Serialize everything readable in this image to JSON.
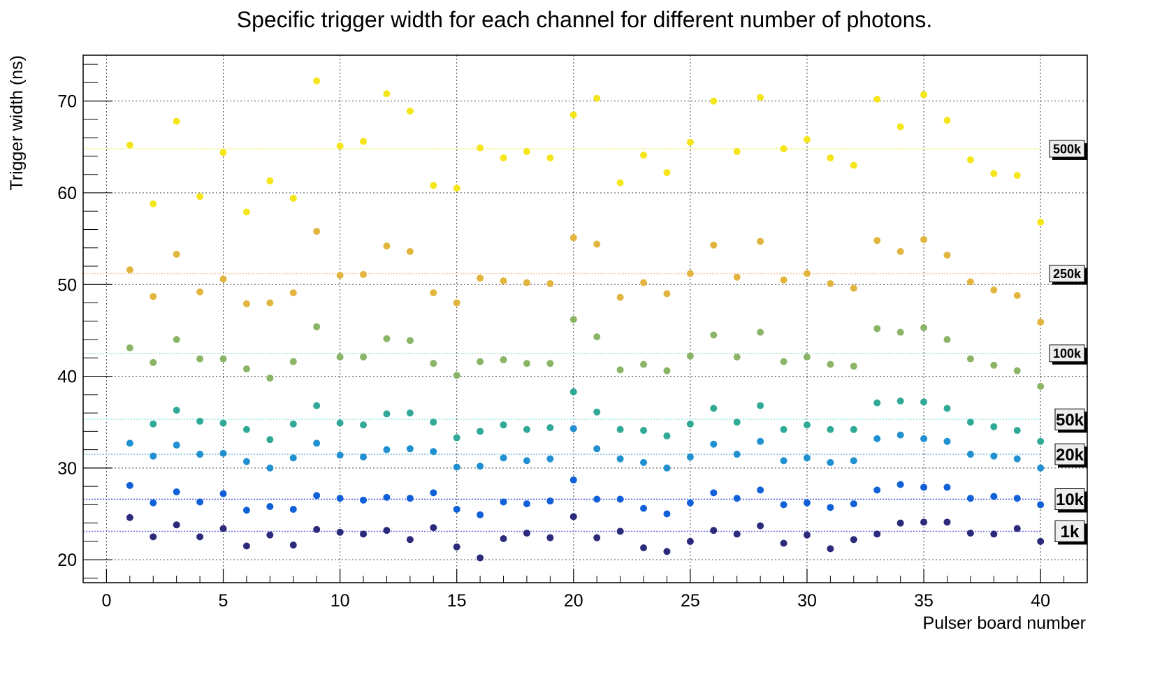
{
  "chart_data": {
    "type": "scatter",
    "title": "Specific trigger width for each channel for different number of photons.",
    "xlabel": "Pulser board number",
    "ylabel": "Trigger width (ns)",
    "xlim": [
      -1,
      42
    ],
    "ylim": [
      17.5,
      75
    ],
    "x_ticks": [
      0,
      5,
      10,
      15,
      20,
      25,
      30,
      35,
      40
    ],
    "y_ticks": [
      20,
      30,
      40,
      50,
      60,
      70
    ],
    "grid": true,
    "x": [
      1,
      2,
      3,
      4,
      5,
      6,
      7,
      8,
      9,
      10,
      11,
      12,
      13,
      14,
      15,
      16,
      17,
      18,
      19,
      20,
      21,
      22,
      23,
      24,
      25,
      26,
      27,
      28,
      29,
      30,
      31,
      32,
      33,
      34,
      35,
      36,
      37,
      38,
      39,
      40
    ],
    "series": [
      {
        "name": "500k",
        "color": "#f5e61b",
        "mean": 64.8,
        "values": [
          65.2,
          58.8,
          67.8,
          59.6,
          64.4,
          57.9,
          61.3,
          59.4,
          72.2,
          65.1,
          65.6,
          70.8,
          68.9,
          60.8,
          60.5,
          64.9,
          63.8,
          64.5,
          63.8,
          68.5,
          70.3,
          61.1,
          64.1,
          62.2,
          65.5,
          70.0,
          64.5,
          70.4,
          64.8,
          65.8,
          63.8,
          63.0,
          70.2,
          67.2,
          70.7,
          67.9,
          63.6,
          62.1,
          61.9,
          56.8
        ]
      },
      {
        "name": "250k",
        "color": "#e2b53e",
        "mean": 51.2,
        "values": [
          51.6,
          48.7,
          53.3,
          49.2,
          50.6,
          47.9,
          48.0,
          49.1,
          55.8,
          51.0,
          51.1,
          54.2,
          53.6,
          49.1,
          48.0,
          50.7,
          50.4,
          50.2,
          50.1,
          55.1,
          54.4,
          48.6,
          50.2,
          49.0,
          51.2,
          54.3,
          50.8,
          54.7,
          50.5,
          51.2,
          50.1,
          49.6,
          54.8,
          53.6,
          54.9,
          53.2,
          50.3,
          49.4,
          48.8,
          45.9
        ]
      },
      {
        "name": "100k",
        "color": "#8ab466",
        "mean": 42.5,
        "values": [
          43.1,
          41.5,
          44.0,
          41.9,
          41.9,
          40.8,
          39.8,
          41.6,
          45.4,
          42.1,
          42.1,
          44.1,
          43.9,
          41.4,
          40.1,
          41.6,
          41.8,
          41.4,
          41.4,
          46.2,
          44.3,
          40.7,
          41.3,
          40.6,
          42.2,
          44.5,
          42.1,
          44.8,
          41.6,
          42.1,
          41.3,
          41.1,
          45.2,
          44.8,
          45.3,
          44.0,
          41.9,
          41.2,
          40.6,
          38.9
        ]
      },
      {
        "name": "50k",
        "color": "#30aa96",
        "mean": 35.3,
        "values": [
          null,
          34.8,
          36.3,
          35.1,
          34.9,
          34.2,
          33.1,
          34.8,
          36.8,
          34.9,
          34.7,
          35.9,
          36.0,
          35.0,
          33.3,
          34.0,
          34.7,
          34.2,
          34.4,
          38.3,
          36.1,
          34.2,
          34.1,
          33.5,
          34.8,
          36.5,
          35.0,
          36.8,
          34.2,
          34.7,
          34.2,
          34.2,
          37.1,
          37.3,
          37.2,
          36.5,
          35.0,
          34.5,
          34.1,
          32.9
        ]
      },
      {
        "name": "20k",
        "color": "#2090d0",
        "mean": 31.5,
        "values": [
          32.7,
          31.3,
          32.5,
          31.5,
          31.6,
          30.7,
          30.0,
          31.1,
          32.7,
          31.4,
          31.2,
          32.0,
          32.1,
          31.8,
          30.1,
          30.2,
          31.1,
          30.8,
          31.0,
          34.3,
          32.1,
          31.0,
          30.6,
          30.0,
          31.2,
          32.6,
          31.5,
          32.9,
          30.8,
          31.1,
          30.6,
          30.8,
          33.2,
          33.6,
          33.2,
          32.9,
          31.5,
          31.3,
          31.0,
          30.0
        ]
      },
      {
        "name": "10k",
        "color": "#1060d8",
        "mean": 26.6,
        "values": [
          28.1,
          26.2,
          27.4,
          26.3,
          27.2,
          25.4,
          25.8,
          25.5,
          27.0,
          26.7,
          26.5,
          26.8,
          26.7,
          27.3,
          25.5,
          24.9,
          26.3,
          26.1,
          26.4,
          28.7,
          26.6,
          26.6,
          25.6,
          25.0,
          26.2,
          27.3,
          26.7,
          27.6,
          26.0,
          26.2,
          25.7,
          26.1,
          27.6,
          28.2,
          27.9,
          27.9,
          26.7,
          26.9,
          26.7,
          26.0
        ]
      },
      {
        "name": "1k",
        "color": "#2c2a7a",
        "mean": 23.1,
        "values": [
          24.6,
          22.5,
          23.8,
          22.5,
          23.4,
          21.5,
          22.7,
          21.6,
          23.3,
          23.0,
          22.8,
          23.2,
          22.2,
          23.5,
          21.4,
          20.2,
          22.3,
          22.9,
          22.4,
          24.7,
          22.4,
          23.1,
          21.3,
          20.9,
          22.0,
          23.2,
          22.8,
          23.7,
          21.8,
          22.7,
          21.2,
          22.2,
          22.8,
          24.0,
          24.1,
          24.1,
          22.9,
          22.8,
          23.4,
          22.0
        ]
      }
    ],
    "mean_line_colors": {
      "500k": "#f8f07a",
      "250k": "#f4c9a6",
      "100k": "#a6dcc6",
      "50k": "#a0ecec",
      "20k": "#88c8e0",
      "10k": "#3a4ad8",
      "1k": "#6a6ae0"
    }
  }
}
